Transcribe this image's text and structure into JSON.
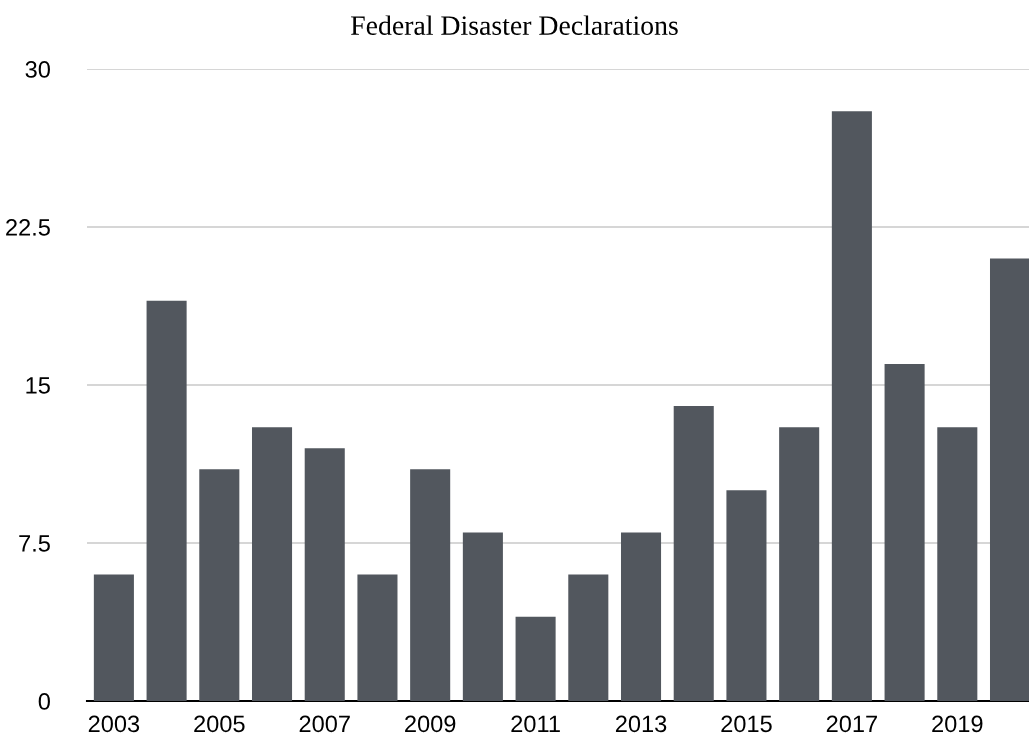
{
  "chart_data": {
    "type": "bar",
    "title": "Federal Disaster Declarations",
    "categories": [
      "2003",
      null,
      "2005",
      null,
      "2007",
      null,
      "2009",
      null,
      "2011",
      null,
      "2013",
      null,
      "2015",
      null,
      "2017",
      null,
      "2019",
      null
    ],
    "values": [
      6,
      19,
      11,
      13,
      12,
      6,
      11,
      8,
      4,
      6,
      8,
      14,
      10,
      13,
      28,
      16,
      13,
      21
    ],
    "color": "#52575e",
    "ylim": [
      0,
      30
    ],
    "yticks": [
      0,
      7.5,
      15,
      22.5,
      30
    ],
    "grid": "y"
  }
}
